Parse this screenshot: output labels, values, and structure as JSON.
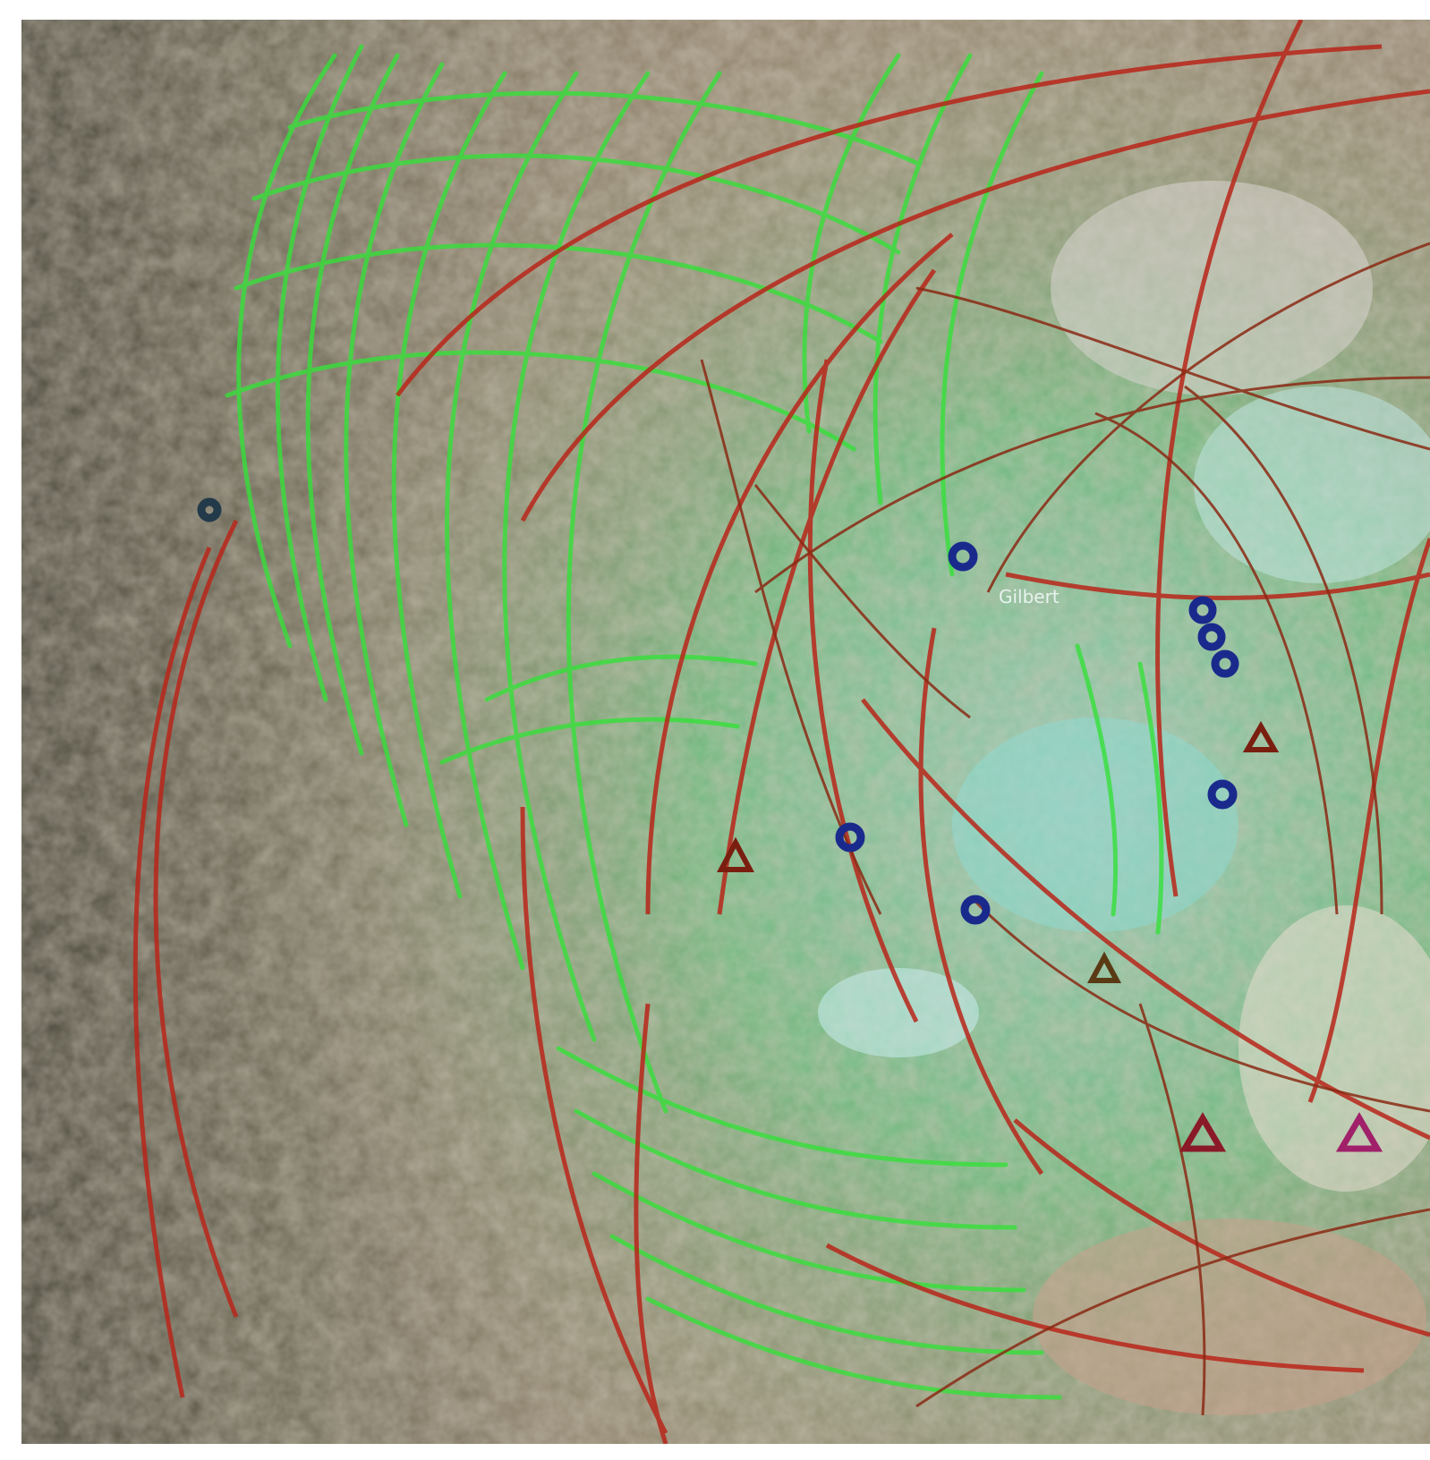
{
  "map": {
    "type": "satellite composite with overlaid arcs and markers",
    "colors": {
      "green_arcs": "#36e03a",
      "red_arcs": "#b8261a",
      "dark_red_arcs": "#8a2a14",
      "blue_markers": "#1a2a8c",
      "triangle_markers": "#7a1e10",
      "terrain_dark": "#4a4a38",
      "terrain_light": "#cfc4b4",
      "vegetation": "#3fae7a"
    },
    "icons": [
      "circle-marker-icon",
      "triangle-marker-icon"
    ],
    "labels": [
      {
        "id": "center-label",
        "text": "Gilbert"
      }
    ]
  }
}
